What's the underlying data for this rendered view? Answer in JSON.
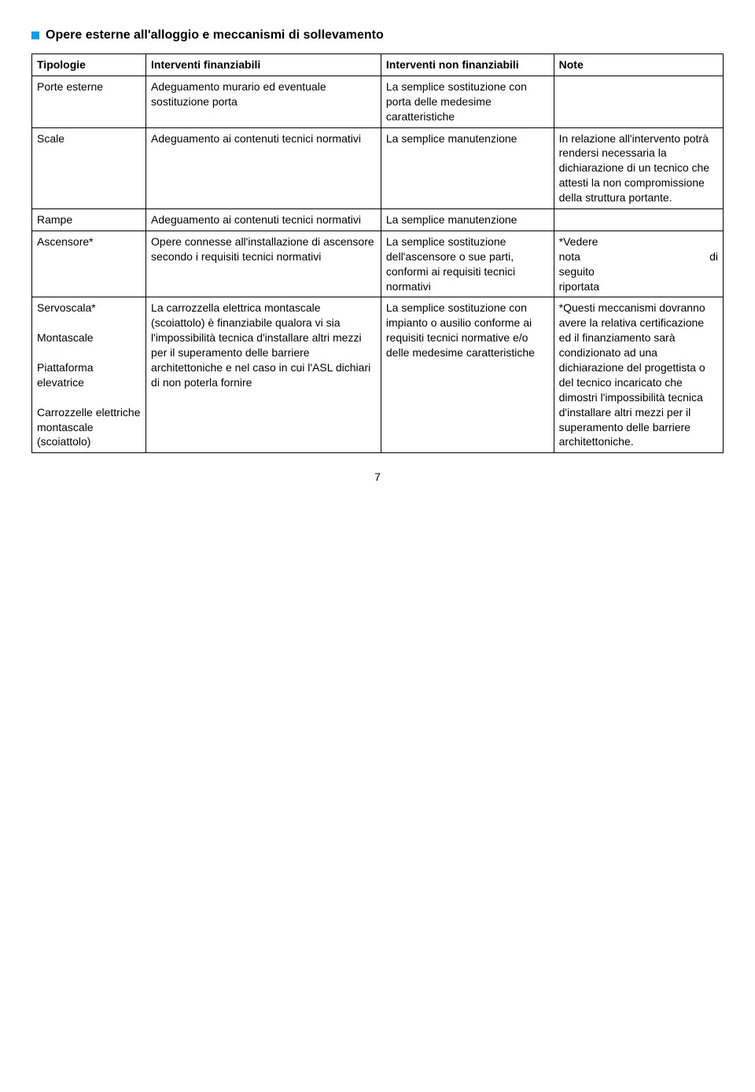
{
  "heading": "Opere esterne all'alloggio e meccanismi di sollevamento",
  "header": {
    "col1": "Tipologie",
    "col2": "Interventi finanziabili",
    "col3": "Interventi non finanziabili",
    "col4": "Note"
  },
  "rows": {
    "r0": {
      "c1": "Porte esterne",
      "c2": "Adeguamento murario ed eventuale sostituzione porta",
      "c3": "La semplice sostituzione con porta delle medesime caratteristiche",
      "c4": ""
    },
    "r1": {
      "c1": "Scale",
      "c2": "Adeguamento ai contenuti tecnici normativi",
      "c3": "La semplice manutenzione",
      "c4": "In relazione all'intervento potrà rendersi necessaria la dichiarazione di un tecnico che attesti la non compromissione della struttura portante."
    },
    "r2": {
      "c1": "Rampe",
      "c2": "Adeguamento ai contenuti tecnici  normativi",
      "c3": "La semplice manutenzione",
      "c4": ""
    },
    "r3": {
      "c1": "Ascensore*",
      "c2": " Opere connesse all'installazione di ascensore secondo i requisiti tecnici normativi",
      "c3": "La semplice sostituzione dell'ascensore o sue parti,  conformi ai requisiti tecnici normativi",
      "c4_l1": "*Vedere",
      "c4_l2a": "nota",
      "c4_l2b": "di",
      "c4_l3": "seguito",
      "c4_l4": "riportata"
    },
    "r4": {
      "c1_a": "Servoscala*",
      "c1_b": "Montascale",
      "c1_c": "Piattaforma elevatrice",
      "c1_d": "Carrozzelle elettriche montascale (scoiattolo)",
      "c2": "La carrozzella elettrica montascale (scoiattolo) è finanziabile qualora vi sia l'impossibilità tecnica d'installare altri mezzi per il superamento delle barriere architettoniche e nel caso  in cui l'ASL dichiari di non poterla fornire",
      "c3": "La semplice sostituzione con impianto o ausilio conforme ai requisiti tecnici normative e/o delle medesime caratteristiche",
      "c4": "*Questi meccanismi dovranno avere la relativa certificazione ed il  finanziamento sarà condizionato ad una dichiarazione del progettista o del tecnico incaricato che dimostri l'impossibilità tecnica d'installare altri mezzi per il superamento delle barriere architettoniche."
    }
  },
  "page_number": "7"
}
